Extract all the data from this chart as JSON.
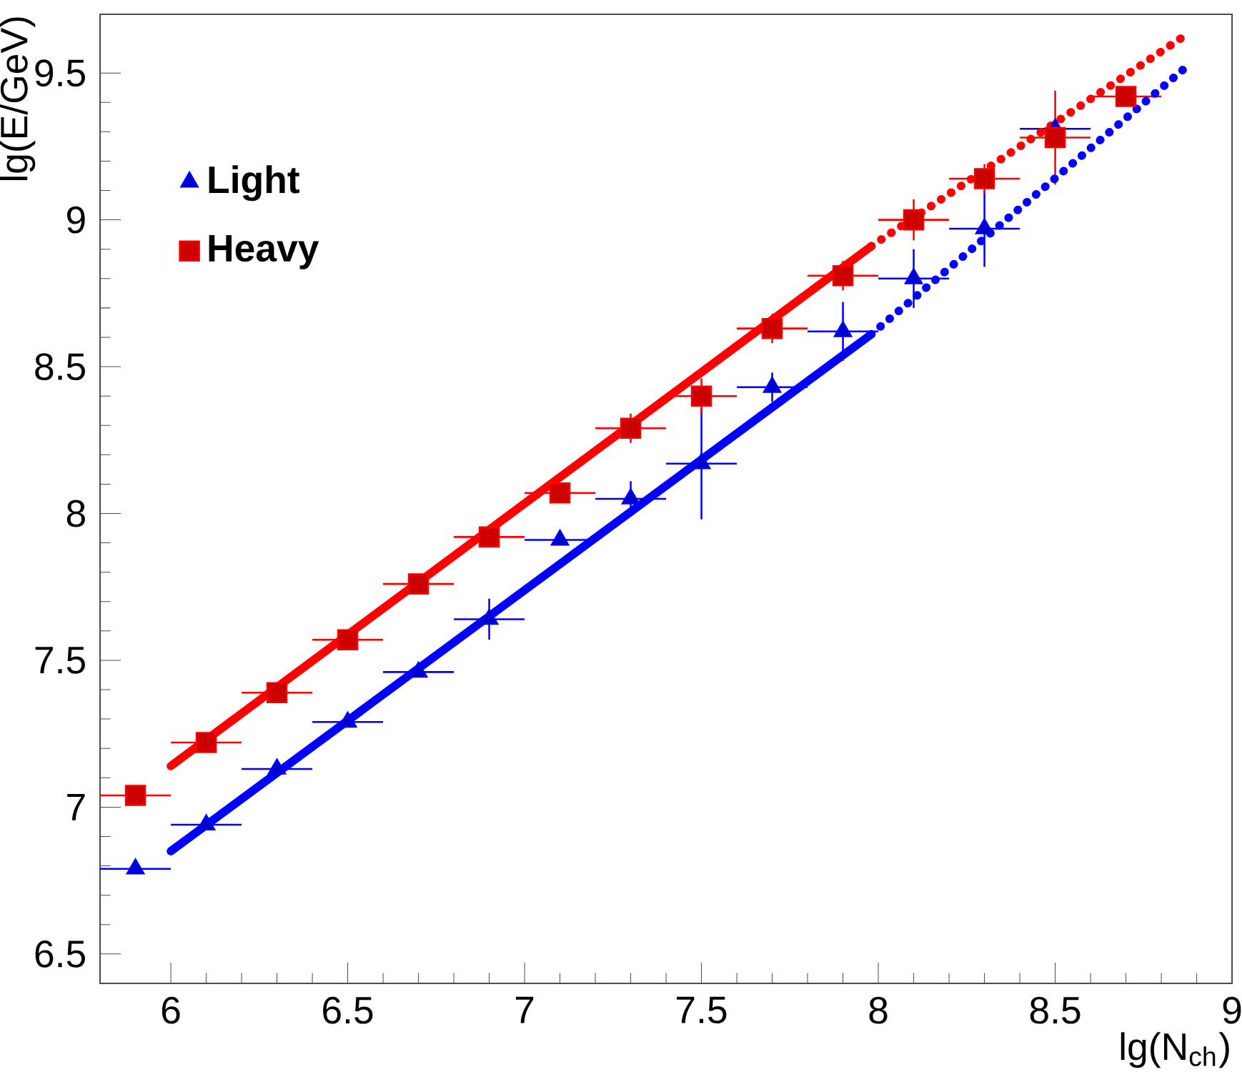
{
  "chart_data": {
    "type": "scatter",
    "xlabel": "lg(N$_{ch}$)",
    "ylabel": "lg(E/GeV)",
    "xlim": [
      5.8,
      9
    ],
    "ylim": [
      6.4,
      9.7
    ],
    "xticks": [
      6,
      6.5,
      7,
      7.5,
      8,
      8.5,
      9
    ],
    "yticks": [
      6.5,
      7,
      7.5,
      8,
      8.5,
      9,
      9.5
    ],
    "grid": false,
    "legend": "top left",
    "series": [
      {
        "name": "Light",
        "color": "#0000ff",
        "marker": "triangle",
        "x": [
          5.9,
          6.1,
          6.3,
          6.5,
          6.7,
          6.9,
          7.1,
          7.3,
          7.5,
          7.7,
          7.9,
          8.1,
          8.3,
          8.5
        ],
        "values": [
          6.79,
          6.94,
          7.13,
          7.29,
          7.46,
          7.64,
          7.91,
          8.05,
          8.17,
          8.43,
          8.62,
          8.8,
          8.97,
          9.31
        ],
        "errors": [
          null,
          null,
          null,
          null,
          null,
          0.07,
          null,
          0.06,
          0.19,
          0.05,
          0.1,
          0.1,
          0.13,
          null
        ],
        "xerrors": [
          0.1,
          0.1,
          0.1,
          0.1,
          0.1,
          0.1,
          0.1,
          0.1,
          0.1,
          0.1,
          0.1,
          0.1,
          0.1,
          0.1
        ]
      },
      {
        "name": "Heavy",
        "color": "#ff0000",
        "marker": "square",
        "x": [
          5.9,
          6.1,
          6.3,
          6.5,
          6.7,
          6.9,
          7.1,
          7.3,
          7.5,
          7.7,
          7.9,
          8.1,
          8.3,
          8.5,
          8.7
        ],
        "values": [
          7.04,
          7.22,
          7.39,
          7.57,
          7.76,
          7.92,
          8.07,
          8.29,
          8.4,
          8.63,
          8.81,
          9.0,
          9.14,
          9.28,
          9.42
        ],
        "errors": [
          null,
          null,
          null,
          null,
          null,
          null,
          null,
          0.05,
          0.06,
          0.05,
          0.05,
          0.07,
          0.05,
          0.16,
          null
        ],
        "xerrors": [
          0.1,
          0.1,
          0.1,
          0.1,
          0.1,
          0.1,
          0.1,
          0.1,
          0.1,
          0.1,
          0.1,
          0.1,
          0.1,
          0.1,
          0.1
        ]
      },
      {
        "type": "line",
        "color": "#ff0000",
        "line_style": "solid",
        "marker": "none",
        "x": [
          6.0,
          7.98
        ],
        "values": [
          7.14,
          8.91
        ]
      },
      {
        "type": "line",
        "color": "#ff0000",
        "line_style": "dotted",
        "marker": "none",
        "x": [
          7.98,
          8.87
        ],
        "values": [
          8.91,
          9.63
        ]
      },
      {
        "type": "line",
        "color": "#0000ff",
        "line_style": "solid",
        "marker": "none",
        "x": [
          6.0,
          7.98
        ],
        "values": [
          6.85,
          8.61
        ]
      },
      {
        "type": "line",
        "color": "#0000ff",
        "line_style": "dotted",
        "marker": "none",
        "x": [
          7.98,
          8.87
        ],
        "values": [
          8.61,
          9.52
        ]
      }
    ]
  }
}
